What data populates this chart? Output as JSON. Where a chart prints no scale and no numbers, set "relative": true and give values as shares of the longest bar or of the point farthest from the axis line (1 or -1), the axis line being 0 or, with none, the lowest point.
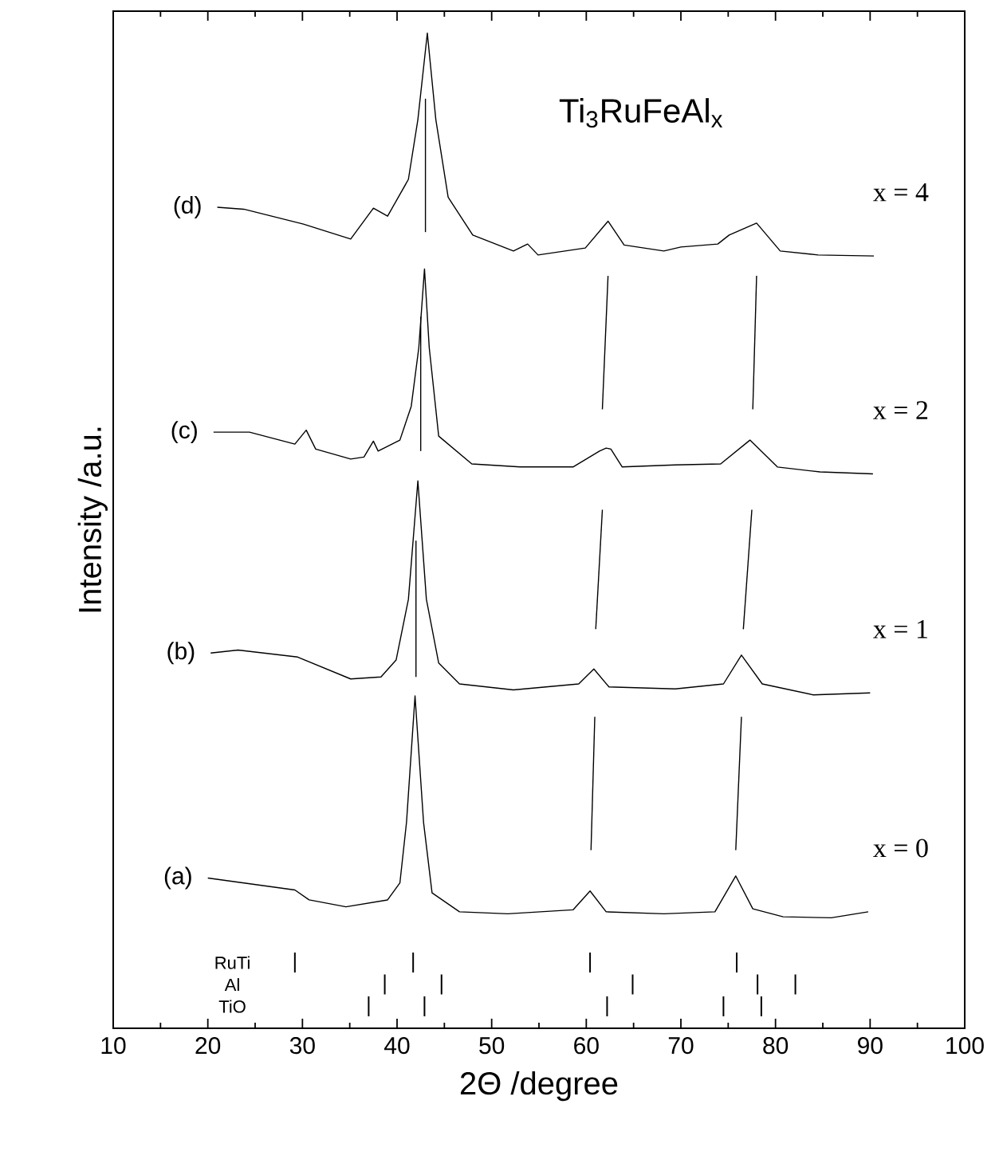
{
  "chart_data": {
    "type": "line",
    "title": "Ti$_{3}$RuFeAl$_{x}$",
    "xlabel": "2Θ /degree",
    "ylabel": "Intensity /a.u.",
    "relative": true,
    "xlim": [
      10,
      100
    ],
    "xticks": [
      10,
      20,
      30,
      40,
      50,
      60,
      70,
      80,
      90,
      100
    ],
    "tick_labels": "x",
    "grid": false,
    "marker": "none",
    "line_style": "solid",
    "annotations": [
      "x = 0",
      "x = 1",
      "x = 2",
      "x = 4",
      "RuTi",
      "Al",
      "TiO"
    ],
    "series": [
      {
        "name": "(a)",
        "color": "#000000",
        "x": [
          20.0,
          29.2,
          30.7,
          34.6,
          39.0,
          40.3,
          41.0,
          41.9,
          42.8,
          43.7,
          46.6,
          51.7,
          58.6,
          60.4,
          62.1,
          68.2,
          73.6,
          75.8,
          77.6,
          80.8,
          85.9,
          89.8
        ],
        "values": [
          0.151,
          0.139,
          0.129,
          0.122,
          0.129,
          0.146,
          0.207,
          0.334,
          0.207,
          0.136,
          0.117,
          0.115,
          0.119,
          0.138,
          0.117,
          0.115,
          0.117,
          0.153,
          0.12,
          0.112,
          0.111,
          0.117
        ]
      },
      {
        "name": "(b)",
        "color": "#000000",
        "x": [
          20.3,
          23.2,
          29.5,
          35.1,
          38.3,
          39.9,
          41.2,
          42.2,
          43.1,
          44.4,
          46.6,
          52.3,
          59.2,
          60.8,
          62.4,
          69.4,
          74.5,
          76.4,
          78.6,
          84.0,
          90.0
        ],
        "values": [
          0.377,
          0.38,
          0.373,
          0.351,
          0.353,
          0.37,
          0.431,
          0.55,
          0.431,
          0.367,
          0.346,
          0.34,
          0.346,
          0.361,
          0.343,
          0.341,
          0.346,
          0.375,
          0.346,
          0.335,
          0.337
        ]
      },
      {
        "name": "(c)",
        "color": "#000000",
        "x": [
          20.6,
          24.4,
          29.2,
          30.4,
          31.4,
          35.1,
          36.5,
          37.5,
          38.0,
          40.3,
          41.5,
          42.3,
          42.9,
          43.4,
          44.4,
          47.9,
          53.0,
          58.6,
          61.4,
          62.1,
          62.6,
          63.8,
          69.4,
          74.2,
          77.3,
          80.2,
          84.7,
          90.3
        ],
        "values": [
          0.599,
          0.599,
          0.587,
          0.601,
          0.582,
          0.572,
          0.574,
          0.59,
          0.58,
          0.591,
          0.625,
          0.684,
          0.763,
          0.684,
          0.595,
          0.567,
          0.564,
          0.564,
          0.58,
          0.583,
          0.582,
          0.564,
          0.566,
          0.567,
          0.591,
          0.564,
          0.559,
          0.557
        ]
      },
      {
        "name": "(d)",
        "color": "#000000",
        "x": [
          21.0,
          23.8,
          30.1,
          35.1,
          37.5,
          39.0,
          41.2,
          42.2,
          43.2,
          44.1,
          45.4,
          48.0,
          52.3,
          53.8,
          54.9,
          59.9,
          62.3,
          64.0,
          68.2,
          70.0,
          73.9,
          75.1,
          78.0,
          80.5,
          84.5,
          90.4
        ],
        "values": [
          0.825,
          0.823,
          0.808,
          0.793,
          0.824,
          0.816,
          0.853,
          0.913,
          1.0,
          0.913,
          0.835,
          0.797,
          0.781,
          0.788,
          0.777,
          0.784,
          0.811,
          0.787,
          0.781,
          0.785,
          0.788,
          0.797,
          0.809,
          0.781,
          0.777,
          0.776
        ]
      },
      {
        "color": "#000000",
        "x": [
          42.0,
          42.0
        ],
        "values": [
          0.353,
          0.49
        ]
      },
      {
        "color": "#000000",
        "x": [
          42.5,
          42.5
        ],
        "values": [
          0.58,
          0.715
        ]
      },
      {
        "color": "#000000",
        "x": [
          43.0,
          43.0
        ],
        "values": [
          0.8,
          0.934
        ]
      },
      {
        "color": "#000000",
        "x": [
          60.5,
          60.9
        ],
        "values": [
          0.179,
          0.313
        ]
      },
      {
        "color": "#000000",
        "x": [
          61.0,
          61.7
        ],
        "values": [
          0.401,
          0.521
        ]
      },
      {
        "color": "#000000",
        "x": [
          61.7,
          62.3
        ],
        "values": [
          0.622,
          0.756
        ]
      },
      {
        "color": "#000000",
        "x": [
          75.8,
          76.4
        ],
        "values": [
          0.179,
          0.313
        ]
      },
      {
        "color": "#000000",
        "x": [
          76.6,
          77.5
        ],
        "values": [
          0.401,
          0.521
        ]
      },
      {
        "color": "#000000",
        "x": [
          77.6,
          78.0
        ],
        "values": [
          0.622,
          0.756
        ]
      },
      {
        "color": "#000000",
        "x": [
          29.2,
          29.2,
          null,
          41.7,
          41.7,
          null,
          60.4,
          60.4,
          null,
          75.9,
          75.9
        ],
        "values": [
          0.056,
          0.076,
          null,
          0.056,
          0.076,
          null,
          0.056,
          0.076,
          null,
          0.056,
          0.076
        ]
      },
      {
        "color": "#000000",
        "x": [
          38.7,
          38.7,
          null,
          44.7,
          44.7,
          null,
          64.9,
          64.9,
          null,
          78.1,
          78.1,
          null,
          82.1,
          82.1
        ],
        "values": [
          0.034,
          0.054,
          null,
          0.034,
          0.054,
          null,
          0.034,
          0.054,
          null,
          0.034,
          0.054,
          null,
          0.034,
          0.054
        ]
      },
      {
        "color": "#000000",
        "x": [
          37.0,
          37.0,
          null,
          42.9,
          42.9,
          null,
          62.2,
          62.2,
          null,
          74.5,
          74.5,
          null,
          78.5,
          78.5
        ],
        "values": [
          0.012,
          0.032,
          null,
          0.012,
          0.032,
          null,
          0.012,
          0.032,
          null,
          0.012,
          0.032,
          null,
          0.012,
          0.032
        ]
      }
    ]
  }
}
